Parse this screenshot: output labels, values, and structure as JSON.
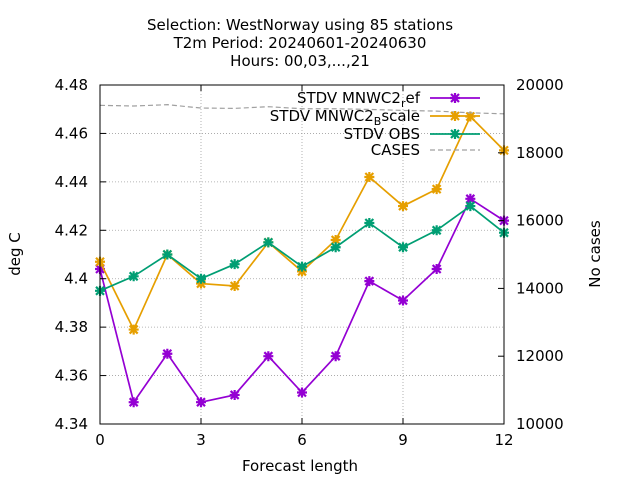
{
  "chart_data": {
    "type": "line",
    "title_lines": [
      "Selection: WestNorway using    85 stations",
      "T2m   Period: 20240601-20240630",
      "Hours: 00,03,...,21"
    ],
    "xlabel": "Forecast length",
    "ylabel": "deg C",
    "y2label": "No cases",
    "xlim": [
      0,
      12
    ],
    "ylim": [
      4.34,
      4.48
    ],
    "y2lim": [
      10000,
      20000
    ],
    "xticks": [
      "0",
      "3",
      "6",
      "9",
      "12"
    ],
    "yticks": [
      "4.34",
      "4.36",
      "4.38",
      "4.4",
      "4.42",
      "4.44",
      "4.46",
      "4.48"
    ],
    "y2ticks": [
      "10000",
      "12000",
      "14000",
      "16000",
      "18000",
      "20000"
    ],
    "grid": true,
    "legend_position": "top-right",
    "x": [
      0,
      1,
      2,
      3,
      4,
      5,
      6,
      7,
      8,
      9,
      10,
      11,
      12
    ],
    "series": [
      {
        "name": "STDV MNWC2_ref",
        "legend_main": "STDV MNWC2",
        "legend_sub": "r",
        "legend_tail": "ef",
        "color": "#9400d3",
        "axis": "y",
        "values": [
          4.404,
          4.349,
          4.369,
          4.349,
          4.352,
          4.368,
          4.353,
          4.368,
          4.399,
          4.391,
          4.404,
          4.433,
          4.424
        ]
      },
      {
        "name": "STDV MNWC2_Bscale",
        "legend_main": "STDV MNWC2",
        "legend_sub": "B",
        "legend_tail": "scale",
        "color": "#e69f00",
        "axis": "y",
        "values": [
          4.407,
          4.379,
          4.41,
          4.398,
          4.397,
          4.415,
          4.403,
          4.416,
          4.442,
          4.43,
          4.437,
          4.467,
          4.453
        ]
      },
      {
        "name": "STDV OBS",
        "legend_main": "STDV OBS",
        "legend_sub": "",
        "legend_tail": "",
        "color": "#009e73",
        "axis": "y",
        "values": [
          4.395,
          4.401,
          4.41,
          4.4,
          4.406,
          4.415,
          4.405,
          4.413,
          4.423,
          4.413,
          4.42,
          4.43,
          4.419
        ]
      },
      {
        "name": "CASES",
        "legend_main": "CASES",
        "legend_sub": "",
        "legend_tail": "",
        "color": "#a0a0a0",
        "axis": "y2",
        "dashed": true,
        "values": [
          19400,
          19380,
          19420,
          19320,
          19310,
          19360,
          19300,
          19300,
          19280,
          19250,
          19230,
          19180,
          19150
        ]
      }
    ]
  }
}
